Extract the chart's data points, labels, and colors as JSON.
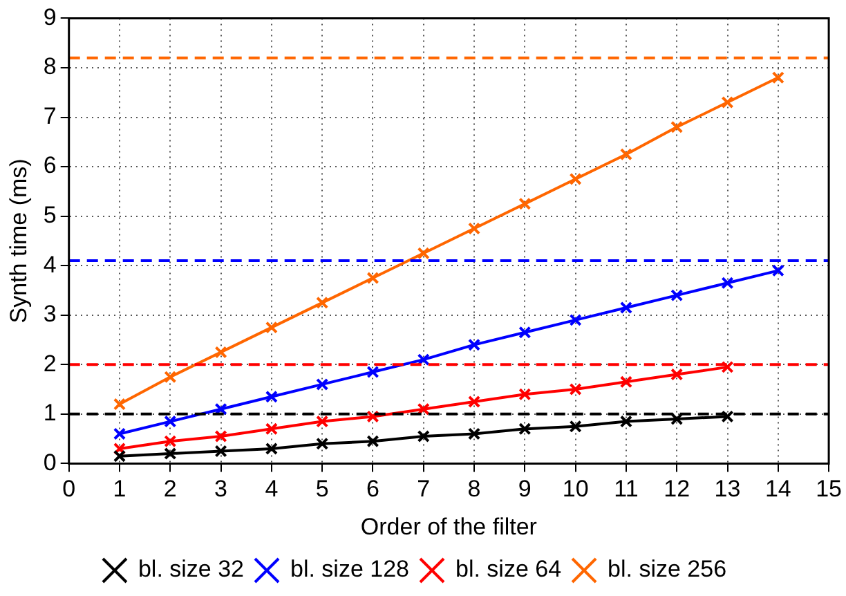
{
  "chart_data": {
    "type": "line",
    "xlabel": "Order of the filter",
    "ylabel": "Synth time (ms)",
    "x": [
      1,
      2,
      3,
      4,
      5,
      6,
      7,
      8,
      9,
      10,
      11,
      12,
      13,
      14
    ],
    "series": [
      {
        "name": "bl. size 32",
        "color": "#000000",
        "values": [
          0.15,
          0.2,
          0.25,
          0.3,
          0.4,
          0.45,
          0.55,
          0.6,
          0.7,
          0.75,
          0.85,
          0.9,
          0.95,
          null
        ]
      },
      {
        "name": "bl. size 128",
        "color": "#0000ff",
        "values": [
          0.6,
          0.85,
          1.1,
          1.35,
          1.6,
          1.85,
          2.1,
          2.4,
          2.65,
          2.9,
          3.15,
          3.4,
          3.65,
          3.9
        ]
      },
      {
        "name": "bl. size 64",
        "color": "#ff0000",
        "values": [
          0.3,
          0.45,
          0.55,
          0.7,
          0.85,
          0.95,
          1.1,
          1.25,
          1.4,
          1.5,
          1.65,
          1.8,
          1.95,
          null
        ]
      },
      {
        "name": "bl. size 256",
        "color": "#ff6600",
        "values": [
          1.2,
          1.75,
          2.25,
          2.75,
          3.25,
          3.75,
          4.25,
          4.75,
          5.25,
          5.75,
          6.25,
          6.8,
          7.3,
          7.8
        ]
      }
    ],
    "ref_lines": [
      {
        "axis": "y",
        "value": 1.0,
        "color": "#000000",
        "line_style": "dashed"
      },
      {
        "axis": "y",
        "value": 2.0,
        "color": "#ff0000",
        "line_style": "dashed"
      },
      {
        "axis": "y",
        "value": 4.1,
        "color": "#0000ff",
        "line_style": "dashed"
      },
      {
        "axis": "y",
        "value": 8.2,
        "color": "#ff6600",
        "line_style": "dashed"
      }
    ],
    "xlim": [
      0,
      15
    ],
    "xticks": [
      0,
      1,
      2,
      3,
      4,
      5,
      6,
      7,
      8,
      9,
      10,
      11,
      12,
      13,
      14,
      15
    ],
    "ylim": [
      0,
      9
    ],
    "yticks": [
      0,
      1,
      2,
      3,
      4,
      5,
      6,
      7,
      8,
      9
    ],
    "grid": true,
    "legend": "bottom",
    "marker": "cross",
    "line_style": "solid"
  }
}
